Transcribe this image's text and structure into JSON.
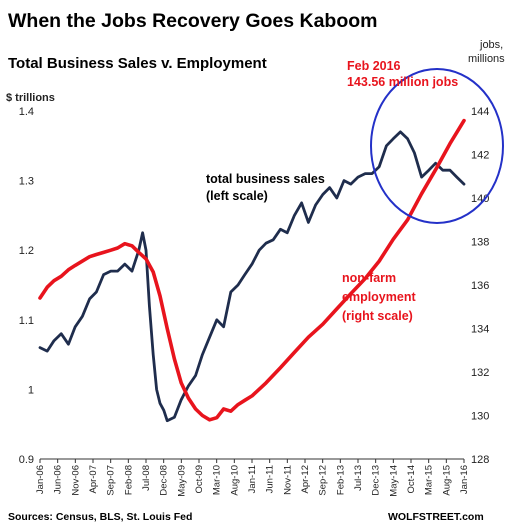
{
  "chart_data": {
    "type": "line",
    "title": "When the Jobs Recovery Goes Kaboom",
    "subtitle": "Total Business Sales v. Employment",
    "ylabel_left": "$ trillions",
    "ylabel_right": [
      "jobs,",
      "millions"
    ],
    "ylim_left": [
      0.9,
      1.4
    ],
    "ylim_right": [
      128,
      144
    ],
    "yticks_left": [
      "0.9",
      "1",
      "1.1",
      "1.2",
      "1.3",
      "1.4"
    ],
    "yticks_right": [
      "128",
      "130",
      "132",
      "134",
      "136",
      "138",
      "140",
      "142",
      "144"
    ],
    "xlim": [
      2006.0,
      2016.0
    ],
    "xtick_labels": [
      "Jan-06",
      "Jun-06",
      "Nov-06",
      "Apr-07",
      "Sep-07",
      "Feb-08",
      "Jul-08",
      "Dec-08",
      "May-09",
      "Oct-09",
      "Mar-10",
      "Aug-10",
      "Jan-11",
      "Jun-11",
      "Nov-11",
      "Apr-12",
      "Sep-12",
      "Feb-13",
      "Jul-13",
      "Dec-13",
      "May-14",
      "Oct-14",
      "Mar-15",
      "Aug-15",
      "Jan-16"
    ],
    "series": [
      {
        "name": "total business sales (left scale)",
        "color": "#1f2d4d",
        "axis": "left",
        "x": [
          2006.0,
          2006.17,
          2006.33,
          2006.5,
          2006.67,
          2006.83,
          2007.0,
          2007.17,
          2007.33,
          2007.5,
          2007.67,
          2007.83,
          2008.0,
          2008.17,
          2008.33,
          2008.42,
          2008.5,
          2008.58,
          2008.67,
          2008.75,
          2008.83,
          2008.92,
          2009.0,
          2009.17,
          2009.33,
          2009.5,
          2009.67,
          2009.83,
          2010.0,
          2010.17,
          2010.33,
          2010.5,
          2010.67,
          2010.83,
          2011.0,
          2011.17,
          2011.33,
          2011.5,
          2011.67,
          2011.83,
          2012.0,
          2012.17,
          2012.33,
          2012.5,
          2012.67,
          2012.83,
          2013.0,
          2013.17,
          2013.33,
          2013.5,
          2013.67,
          2013.83,
          2014.0,
          2014.17,
          2014.33,
          2014.5,
          2014.67,
          2014.83,
          2015.0,
          2015.17,
          2015.33,
          2015.5,
          2015.67,
          2015.83,
          2016.0
        ],
        "values": [
          1.06,
          1.055,
          1.07,
          1.08,
          1.065,
          1.09,
          1.105,
          1.13,
          1.14,
          1.165,
          1.17,
          1.17,
          1.18,
          1.17,
          1.2,
          1.225,
          1.2,
          1.12,
          1.05,
          1.0,
          0.98,
          0.97,
          0.955,
          0.96,
          0.985,
          1.005,
          1.02,
          1.05,
          1.075,
          1.1,
          1.09,
          1.14,
          1.15,
          1.165,
          1.18,
          1.2,
          1.21,
          1.215,
          1.23,
          1.225,
          1.25,
          1.268,
          1.24,
          1.265,
          1.28,
          1.29,
          1.275,
          1.3,
          1.295,
          1.305,
          1.31,
          1.31,
          1.32,
          1.35,
          1.36,
          1.37,
          1.36,
          1.34,
          1.305,
          1.315,
          1.325,
          1.315,
          1.315,
          1.305,
          1.295
        ]
      },
      {
        "name": "non-farm employment (right scale)",
        "color": "#e8141d",
        "axis": "right",
        "x": [
          2006.0,
          2006.17,
          2006.33,
          2006.5,
          2006.67,
          2006.83,
          2007.0,
          2007.17,
          2007.33,
          2007.5,
          2007.67,
          2007.83,
          2008.0,
          2008.17,
          2008.33,
          2008.5,
          2008.67,
          2008.83,
          2009.0,
          2009.17,
          2009.33,
          2009.5,
          2009.67,
          2009.83,
          2010.0,
          2010.17,
          2010.33,
          2010.5,
          2010.67,
          2010.83,
          2011.0,
          2011.33,
          2011.67,
          2012.0,
          2012.33,
          2012.67,
          2013.0,
          2013.33,
          2013.67,
          2014.0,
          2014.33,
          2014.67,
          2015.0,
          2015.33,
          2015.67,
          2016.0
        ],
        "values": [
          135.4,
          135.9,
          136.2,
          136.4,
          136.7,
          136.9,
          137.1,
          137.3,
          137.4,
          137.5,
          137.6,
          137.7,
          137.9,
          137.8,
          137.5,
          137.2,
          136.6,
          135.5,
          134.0,
          132.6,
          131.5,
          130.8,
          130.3,
          130.0,
          129.8,
          129.9,
          130.3,
          130.2,
          130.5,
          130.7,
          130.9,
          131.5,
          132.2,
          132.9,
          133.6,
          134.2,
          134.9,
          135.6,
          136.3,
          137.1,
          138.1,
          139.0,
          140.2,
          141.3,
          142.5,
          143.56
        ]
      }
    ],
    "annotations": {
      "peak_line1": "Feb 2016",
      "peak_line2": "143.56 million jobs",
      "sales_line1": "total business sales",
      "sales_line2": "(left scale)",
      "emp_line1": "non-farm",
      "emp_line2": "employment",
      "emp_line3": "(right scale)"
    },
    "highlight_ring_color": "#2431c8",
    "grid": false,
    "legend": "none"
  },
  "footer": {
    "sources": "Sources: Census, BLS, St. Louis Fed",
    "brand": "WOLFSTREET.com"
  }
}
